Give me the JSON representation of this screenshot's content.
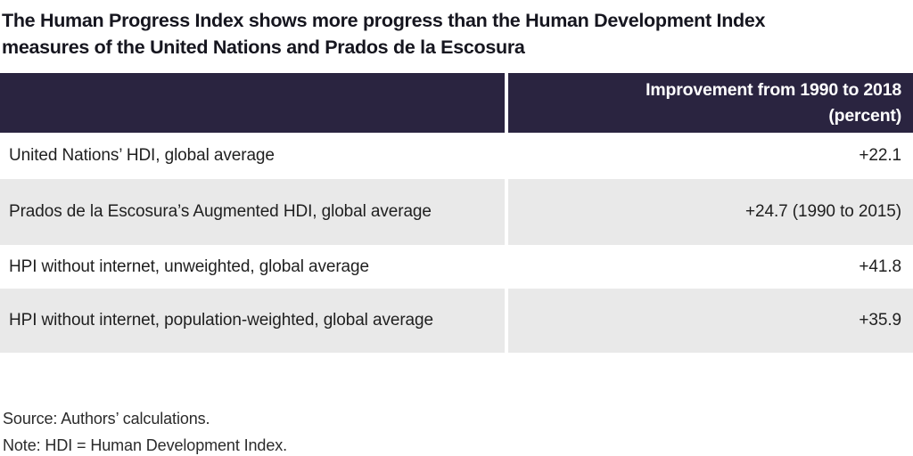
{
  "colors": {
    "header_bg": "#2a2440",
    "row_alt_bg": "#e9e9e9",
    "title_text": "#16161f",
    "body_text": "#1f1f1f",
    "header_text": "#ffffff"
  },
  "title": {
    "lines": [
      "The Human Progress Index shows more progress than the Human Development Index",
      "measures of the United Nations and Prados de la Escosura"
    ]
  },
  "table": {
    "header": {
      "col2_lines": [
        "Improvement from 1990 to 2018",
        "(percent)"
      ]
    },
    "rows": [
      {
        "label": "United Nations’ HDI, global average",
        "value": "+22.1"
      },
      {
        "label": "Prados de la Escosura’s Augmented HDI, global average",
        "value": "+24.7 (1990 to 2015)"
      },
      {
        "label": "HPI without internet, unweighted, global average",
        "value": "+41.8"
      },
      {
        "label": "HPI without internet, population-weighted, global average",
        "value": "+35.9"
      }
    ]
  },
  "footer": {
    "source": "Source: Authors’ calculations.",
    "note": "Note: HDI = Human Development Index."
  },
  "chart_data": {
    "type": "table",
    "title": "The Human Progress Index shows more progress than the Human Development Index measures of the United Nations and Prados de la Escosura",
    "columns": [
      "",
      "Improvement from 1990 to 2018 (percent)"
    ],
    "rows": [
      [
        "United Nations’ HDI, global average",
        "+22.1"
      ],
      [
        "Prados de la Escosura’s Augmented HDI, global average",
        "+24.7 (1990 to 2015)"
      ],
      [
        "HPI without internet, unweighted, global average",
        "+41.8"
      ],
      [
        "HPI without internet, population-weighted, global average",
        "+35.9"
      ]
    ],
    "values": [
      22.1,
      24.7,
      41.8,
      35.9
    ],
    "source": "Source: Authors’ calculations.",
    "note": "Note: HDI = Human Development Index."
  }
}
